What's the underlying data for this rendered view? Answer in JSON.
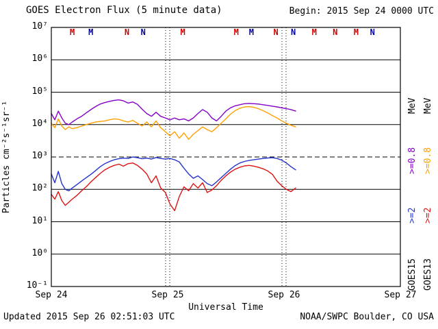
{
  "header": {
    "title": "GOES Electron Flux (5 minute data)",
    "begin_label": "Begin: 2015 Sep 24 0000 UTC"
  },
  "footer": {
    "updated": "Updated 2015 Sep 26 02:51:03 UTC",
    "credit": "NOAA/SWPC Boulder, CO USA"
  },
  "axes": {
    "x_label": "Universal Time",
    "y_label": "Particles cm⁻²s⁻¹sr⁻¹"
  },
  "legend": {
    "goes15": {
      "sat": "GOES15",
      "e2": ">=2",
      "e08": ">=0.8",
      "mev": "MeV"
    },
    "goes13": {
      "sat": "GOES13",
      "e2": ">=2",
      "e08": ">=0.8",
      "mev": "MeV"
    }
  },
  "colors": {
    "goes15_e08": "#8400c8",
    "goes13_e08": "#ffa000",
    "goes15_e2": "#2233cc",
    "goes13_e2": "#dd1111",
    "marker_red": "#cc0000",
    "marker_blue": "#000099",
    "axis": "#000000",
    "background": "#ffffff"
  },
  "chart_data": {
    "type": "line",
    "title": "GOES Electron Flux (5 minute data)",
    "xlabel": "Universal Time",
    "ylabel": "Particles cm⁻²s⁻¹sr⁻¹",
    "grid": "on",
    "legend_position": "right-rotated",
    "x_range_days": [
      0,
      3
    ],
    "x_ticks": [
      {
        "t": 0,
        "label": "Sep 24"
      },
      {
        "t": 1,
        "label": "Sep 25"
      },
      {
        "t": 2,
        "label": "Sep 26"
      },
      {
        "t": 3,
        "label": "Sep 27"
      }
    ],
    "log_y_range": [
      -1,
      7
    ],
    "y_ticks": [
      {
        "exp": 7,
        "label": "10⁷"
      },
      {
        "exp": 6,
        "label": "10⁶"
      },
      {
        "exp": 5,
        "label": "10⁵"
      },
      {
        "exp": 4,
        "label": "10⁴"
      },
      {
        "exp": 3,
        "label": "10³"
      },
      {
        "exp": 2,
        "label": "10²"
      },
      {
        "exp": 1,
        "label": "10¹"
      },
      {
        "exp": 0,
        "label": "10⁰"
      },
      {
        "exp": -1,
        "label": "10⁻¹"
      }
    ],
    "threshold_exponent": 3,
    "day_boundaries": [
      1,
      2
    ],
    "event_markers": [
      {
        "t": 0.18,
        "label": "M",
        "color": "red"
      },
      {
        "t": 0.34,
        "label": "M",
        "color": "blue"
      },
      {
        "t": 0.65,
        "label": "N",
        "color": "red"
      },
      {
        "t": 0.79,
        "label": "N",
        "color": "blue"
      },
      {
        "t": 1.13,
        "label": "M",
        "color": "red"
      },
      {
        "t": 1.59,
        "label": "M",
        "color": "red"
      },
      {
        "t": 1.72,
        "label": "M",
        "color": "blue"
      },
      {
        "t": 1.93,
        "label": "N",
        "color": "red"
      },
      {
        "t": 2.08,
        "label": "N",
        "color": "blue"
      },
      {
        "t": 2.26,
        "label": "M",
        "color": "red"
      },
      {
        "t": 2.44,
        "label": "N",
        "color": "red"
      },
      {
        "t": 2.62,
        "label": "M",
        "color": "red"
      },
      {
        "t": 2.76,
        "label": "N",
        "color": "blue"
      }
    ],
    "x_days": [
      0.0,
      0.03,
      0.06,
      0.09,
      0.12,
      0.15,
      0.18,
      0.22,
      0.26,
      0.3,
      0.34,
      0.38,
      0.42,
      0.46,
      0.5,
      0.54,
      0.58,
      0.62,
      0.66,
      0.7,
      0.74,
      0.78,
      0.82,
      0.86,
      0.9,
      0.94,
      0.98,
      1.02,
      1.06,
      1.1,
      1.14,
      1.18,
      1.22,
      1.26,
      1.3,
      1.34,
      1.38,
      1.42,
      1.46,
      1.5,
      1.54,
      1.58,
      1.62,
      1.66,
      1.7,
      1.74,
      1.78,
      1.82,
      1.86,
      1.9,
      1.94,
      1.98,
      2.02,
      2.06,
      2.1
    ],
    "series": [
      {
        "name": "GOES15 >=0.8 MeV",
        "color_key": "goes15_e08",
        "values": [
          22000,
          14000,
          26000,
          16000,
          11000,
          10000,
          12000,
          15000,
          18000,
          23000,
          29000,
          36000,
          43000,
          48000,
          52000,
          56000,
          58000,
          54000,
          46000,
          50000,
          42000,
          30000,
          22000,
          18000,
          24000,
          18000,
          16000,
          14000,
          16000,
          14000,
          15000,
          13000,
          16000,
          22000,
          29000,
          24000,
          16000,
          13000,
          18000,
          26000,
          33000,
          38000,
          41000,
          44000,
          45000,
          44000,
          43000,
          41000,
          39000,
          37000,
          35000,
          33000,
          31000,
          29000,
          26000
        ]
      },
      {
        "name": "GOES13 >=0.8 MeV",
        "color_key": "goes13_e08",
        "values": [
          11000,
          8000,
          15000,
          9000,
          7000,
          8500,
          7500,
          8000,
          9000,
          10000,
          11000,
          12000,
          12500,
          13000,
          14000,
          15000,
          14500,
          13000,
          12000,
          13500,
          11000,
          9000,
          12000,
          8500,
          13000,
          8000,
          6000,
          4500,
          6000,
          3800,
          5500,
          3500,
          5000,
          6500,
          8500,
          7000,
          6000,
          8000,
          11000,
          15000,
          21000,
          27000,
          32000,
          35000,
          36000,
          34000,
          31000,
          27000,
          23000,
          19000,
          16000,
          13000,
          11000,
          9500,
          8500
        ]
      },
      {
        "name": "GOES15 >=2 MeV",
        "color_key": "goes15_e2",
        "values": [
          300,
          160,
          360,
          150,
          100,
          90,
          110,
          140,
          180,
          230,
          290,
          380,
          500,
          620,
          720,
          820,
          880,
          920,
          900,
          1000,
          950,
          880,
          920,
          860,
          960,
          900,
          860,
          900,
          820,
          700,
          450,
          300,
          220,
          260,
          200,
          150,
          130,
          170,
          230,
          310,
          420,
          540,
          650,
          730,
          780,
          820,
          860,
          900,
          930,
          950,
          900,
          800,
          650,
          500,
          400
        ]
      },
      {
        "name": "GOES13 >=2 MeV",
        "color_key": "goes13_e2",
        "values": [
          70,
          50,
          85,
          45,
          32,
          40,
          50,
          65,
          90,
          120,
          170,
          230,
          310,
          400,
          480,
          550,
          600,
          520,
          620,
          650,
          550,
          420,
          300,
          160,
          260,
          110,
          80,
          35,
          22,
          60,
          120,
          90,
          150,
          110,
          160,
          80,
          95,
          130,
          190,
          260,
          340,
          420,
          480,
          530,
          550,
          520,
          480,
          430,
          370,
          290,
          180,
          130,
          100,
          85,
          110
        ]
      }
    ]
  }
}
